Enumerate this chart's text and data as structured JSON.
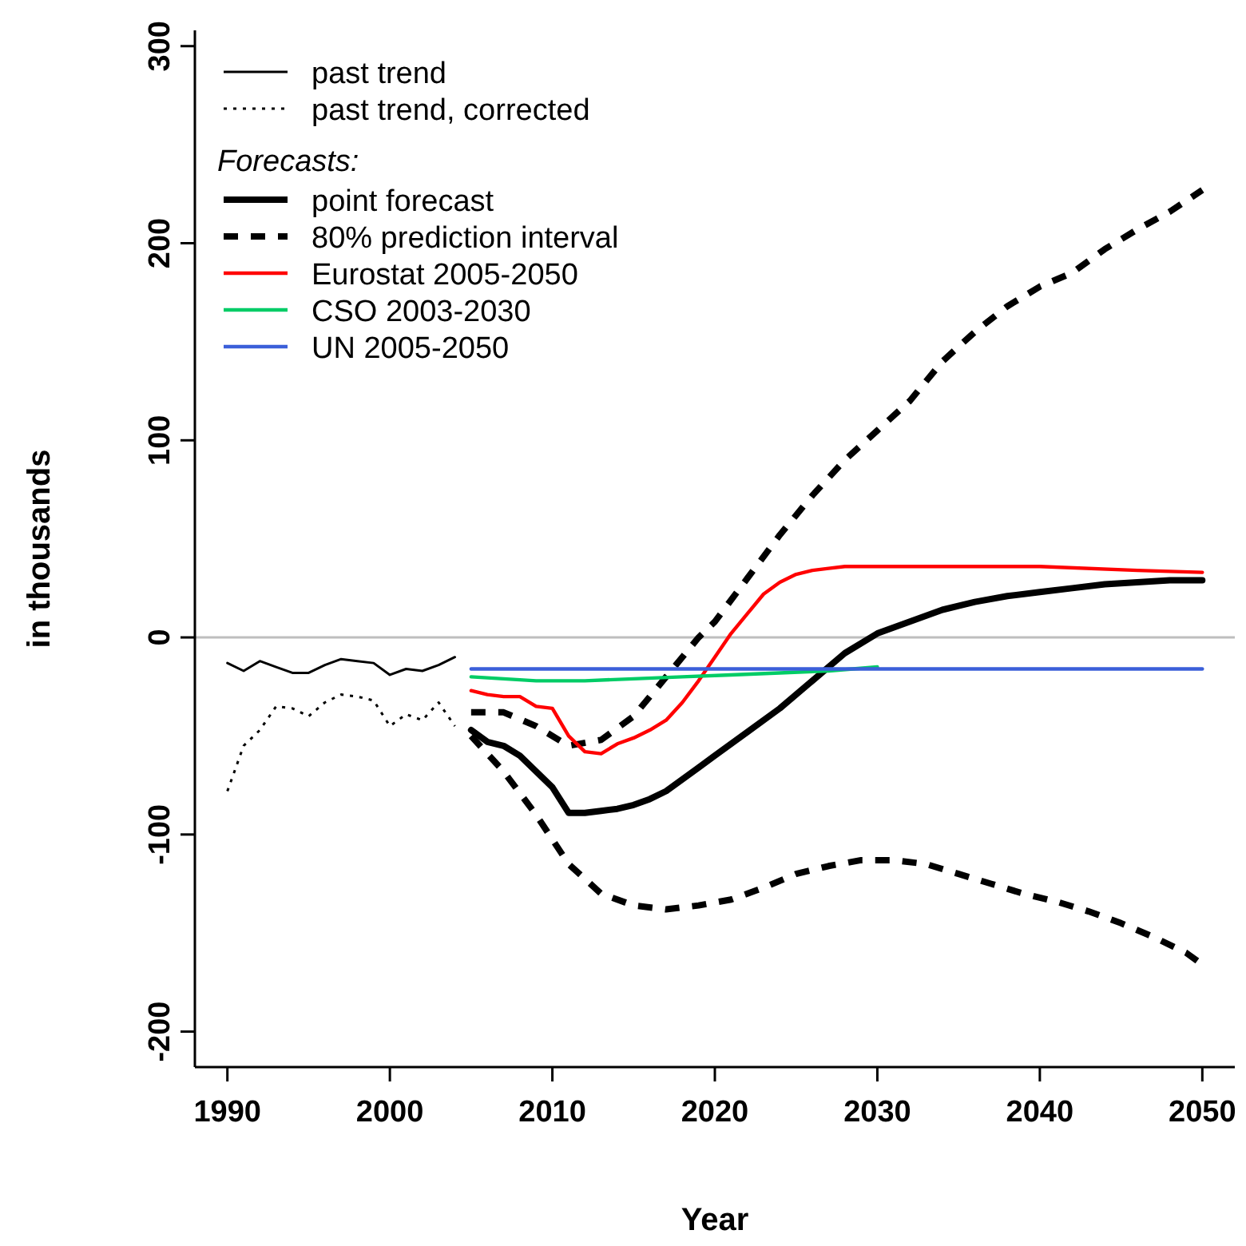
{
  "chart_data": {
    "type": "line",
    "xlabel": "Year",
    "ylabel": "in thousands",
    "legend_title": "Forecasts:",
    "legend": "top left",
    "grid": false,
    "xlim": [
      1988,
      2052
    ],
    "xticks": [
      1990,
      2000,
      2010,
      2020,
      2030,
      2040,
      2050
    ],
    "ylim": [
      -218,
      308
    ],
    "yticks": [
      -200,
      -100,
      0,
      100,
      200,
      300
    ],
    "ref_lines": [
      {
        "axis": "y",
        "value": 0,
        "color": "#bebebe"
      }
    ],
    "series": [
      {
        "name": "past trend",
        "color": "#000000",
        "line_style": "solid",
        "x": [
          1990,
          1991,
          1992,
          1993,
          1994,
          1995,
          1996,
          1997,
          1998,
          1999,
          2000,
          2001,
          2002,
          2003,
          2004
        ],
        "values": [
          -13,
          -17,
          -12,
          -15,
          -18,
          -18,
          -14,
          -11,
          -12,
          -13,
          -19,
          -16,
          -17,
          -14,
          -10
        ]
      },
      {
        "name": "past trend, corrected",
        "color": "#000000",
        "line_style": "dotted",
        "x": [
          1990,
          1991,
          1992,
          1993,
          1994,
          1995,
          1996,
          1997,
          1998,
          1999,
          2000,
          2001,
          2002,
          2003,
          2004
        ],
        "values": [
          -78,
          -55,
          -47,
          -35,
          -36,
          -40,
          -33,
          -29,
          -30,
          -32,
          -45,
          -39,
          -42,
          -33,
          -45
        ]
      },
      {
        "name": "point forecast",
        "color": "#000000",
        "line_style": "solid",
        "x": [
          2005,
          2006,
          2007,
          2008,
          2009,
          2010,
          2011,
          2012,
          2013,
          2014,
          2015,
          2016,
          2017,
          2018,
          2019,
          2020,
          2022,
          2024,
          2026,
          2028,
          2030,
          2032,
          2034,
          2036,
          2038,
          2040,
          2042,
          2044,
          2046,
          2048,
          2050
        ],
        "values": [
          -47,
          -53,
          -55,
          -60,
          -68,
          -76,
          -89,
          -89,
          -88,
          -87,
          -85,
          -82,
          -78,
          -72,
          -66,
          -60,
          -48,
          -36,
          -22,
          -8,
          2,
          8,
          14,
          18,
          21,
          23,
          25,
          27,
          28,
          29,
          29
        ]
      },
      {
        "name": "80% prediction interval",
        "color": "#000000",
        "line_style": "dashed",
        "x": [
          2005,
          2007,
          2009,
          2011,
          2013,
          2015,
          2017,
          2019,
          2020,
          2022,
          2024,
          2026,
          2028,
          2030,
          2032,
          2034,
          2036,
          2038,
          2040,
          2042,
          2044,
          2046,
          2048,
          2050
        ],
        "values": [
          -38,
          -38,
          -45,
          -55,
          -52,
          -40,
          -20,
          0,
          8,
          30,
          52,
          72,
          90,
          105,
          120,
          140,
          155,
          168,
          178,
          185,
          197,
          207,
          216,
          227
        ]
      },
      {
        "color": "#000000",
        "line_style": "dashed",
        "x": [
          2005,
          2007,
          2009,
          2011,
          2013,
          2015,
          2017,
          2019,
          2021,
          2023,
          2025,
          2027,
          2029,
          2031,
          2033,
          2035,
          2037,
          2039,
          2041,
          2043,
          2045,
          2047,
          2049,
          2050
        ],
        "values": [
          -50,
          -68,
          -90,
          -115,
          -130,
          -136,
          -138,
          -136,
          -133,
          -127,
          -120,
          -116,
          -113,
          -113,
          -115,
          -120,
          -125,
          -130,
          -134,
          -139,
          -145,
          -152,
          -160,
          -166
        ]
      },
      {
        "name": "Eurostat 2005-2050",
        "color": "#ff0000",
        "line_style": "solid",
        "x": [
          2005,
          2006,
          2007,
          2008,
          2009,
          2010,
          2011,
          2012,
          2013,
          2014,
          2015,
          2016,
          2017,
          2018,
          2019,
          2020,
          2021,
          2022,
          2023,
          2024,
          2025,
          2026,
          2027,
          2028,
          2030,
          2040,
          2046,
          2050
        ],
        "values": [
          -27,
          -29,
          -30,
          -30,
          -35,
          -36,
          -50,
          -58,
          -59,
          -54,
          -51,
          -47,
          -42,
          -33,
          -22,
          -10,
          2,
          12,
          22,
          28,
          32,
          34,
          35,
          36,
          36,
          36,
          34,
          33
        ]
      },
      {
        "name": "CSO 2003-2030",
        "color": "#00cc66",
        "line_style": "solid",
        "x": [
          2005,
          2007,
          2009,
          2012,
          2015,
          2018,
          2021,
          2024,
          2027,
          2030
        ],
        "values": [
          -20,
          -21,
          -22,
          -22,
          -21,
          -20,
          -19,
          -18,
          -17,
          -15
        ]
      },
      {
        "name": "UN 2005-2050",
        "color": "#3b5fd9",
        "line_style": "solid",
        "x": [
          2005,
          2050
        ],
        "values": [
          -16,
          -16
        ]
      }
    ]
  }
}
